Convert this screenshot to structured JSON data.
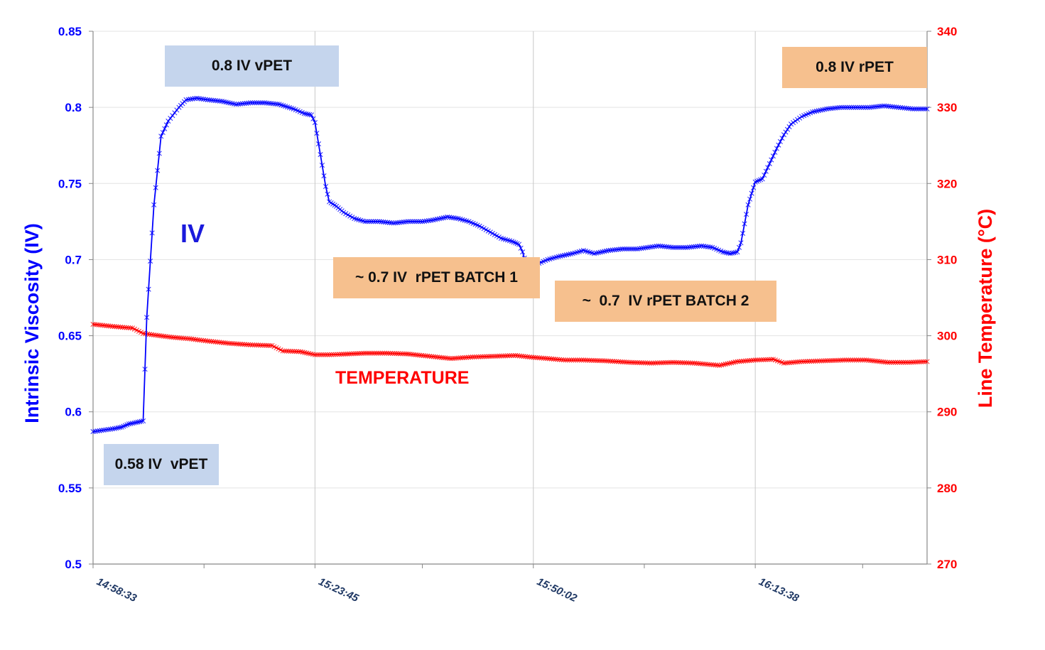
{
  "chart_data": {
    "type": "line",
    "title": "",
    "ylabel_left": "Intrinsic Viscosity (IV)",
    "ylabel_right": "Line Temperature (°C)",
    "xlabel": "",
    "ylim_left": [
      0.5,
      0.85
    ],
    "ylim_right": [
      270,
      340
    ],
    "yticks_left": [
      "0.85",
      "0.8",
      "0.75",
      "0.7",
      "0.65",
      "0.6",
      "0.55",
      "0.5"
    ],
    "yticks_right": [
      "340",
      "330",
      "320",
      "310",
      "300",
      "290",
      "280",
      "270"
    ],
    "x_tick_labels": [
      "14:58:33",
      "15:23:45",
      "15:50:02",
      "16:13:38"
    ],
    "grid": "vertical lines at labeled x ticks, horizontal gridlines",
    "series": [
      {
        "name": "IV",
        "axis": "left",
        "color": "#0000ff",
        "marker": "x",
        "points": [
          [
            0,
            0.587
          ],
          [
            3,
            0.588
          ],
          [
            6,
            0.589
          ],
          [
            8,
            0.59
          ],
          [
            10,
            0.592
          ],
          [
            12,
            0.593
          ],
          [
            14,
            0.594
          ],
          [
            15,
            0.662
          ],
          [
            17,
            0.736
          ],
          [
            19,
            0.781
          ],
          [
            21,
            0.791
          ],
          [
            24,
            0.8
          ],
          [
            26,
            0.805
          ],
          [
            29,
            0.806
          ],
          [
            32,
            0.805
          ],
          [
            36,
            0.804
          ],
          [
            40,
            0.802
          ],
          [
            44,
            0.803
          ],
          [
            48,
            0.803
          ],
          [
            52,
            0.802
          ],
          [
            56,
            0.799
          ],
          [
            59,
            0.796
          ],
          [
            61,
            0.795
          ],
          [
            62,
            0.79
          ],
          [
            64,
            0.762
          ],
          [
            65,
            0.748
          ],
          [
            66,
            0.738
          ],
          [
            68,
            0.735
          ],
          [
            70,
            0.731
          ],
          [
            73,
            0.727
          ],
          [
            76,
            0.725
          ],
          [
            80,
            0.725
          ],
          [
            84,
            0.724
          ],
          [
            88,
            0.725
          ],
          [
            92,
            0.725
          ],
          [
            95,
            0.726
          ],
          [
            99,
            0.728
          ],
          [
            102,
            0.727
          ],
          [
            105,
            0.725
          ],
          [
            108,
            0.722
          ],
          [
            111,
            0.718
          ],
          [
            114,
            0.714
          ],
          [
            117,
            0.712
          ],
          [
            119,
            0.71
          ],
          [
            120,
            0.705
          ],
          [
            121,
            0.697
          ],
          [
            124,
            0.697
          ],
          [
            127,
            0.7
          ],
          [
            130,
            0.702
          ],
          [
            134,
            0.704
          ],
          [
            137,
            0.706
          ],
          [
            140,
            0.704
          ],
          [
            144,
            0.706
          ],
          [
            148,
            0.707
          ],
          [
            152,
            0.707
          ],
          [
            155,
            0.708
          ],
          [
            158,
            0.709
          ],
          [
            162,
            0.708
          ],
          [
            166,
            0.708
          ],
          [
            170,
            0.709
          ],
          [
            173,
            0.708
          ],
          [
            176,
            0.705
          ],
          [
            178,
            0.704
          ],
          [
            180,
            0.705
          ],
          [
            181,
            0.711
          ],
          [
            183,
            0.736
          ],
          [
            185,
            0.751
          ],
          [
            187,
            0.753
          ],
          [
            189,
            0.763
          ],
          [
            191,
            0.773
          ],
          [
            193,
            0.782
          ],
          [
            195,
            0.789
          ],
          [
            198,
            0.794
          ],
          [
            201,
            0.797
          ],
          [
            205,
            0.799
          ],
          [
            209,
            0.8
          ],
          [
            213,
            0.8
          ],
          [
            217,
            0.8
          ],
          [
            221,
            0.801
          ],
          [
            225,
            0.8
          ],
          [
            229,
            0.799
          ],
          [
            233,
            0.799
          ]
        ]
      },
      {
        "name": "TEMPERATURE",
        "axis": "right",
        "color": "#ff0000",
        "marker": "x",
        "points": [
          [
            0,
            301.5
          ],
          [
            6,
            301.2
          ],
          [
            11,
            301.0
          ],
          [
            14,
            300.3
          ],
          [
            17,
            300.1
          ],
          [
            22,
            299.8
          ],
          [
            27,
            299.6
          ],
          [
            32,
            299.3
          ],
          [
            38,
            299.0
          ],
          [
            44,
            298.8
          ],
          [
            50,
            298.7
          ],
          [
            53,
            298.0
          ],
          [
            58,
            297.9
          ],
          [
            62,
            297.5
          ],
          [
            66,
            297.5
          ],
          [
            71,
            297.6
          ],
          [
            76,
            297.7
          ],
          [
            82,
            297.7
          ],
          [
            88,
            297.6
          ],
          [
            94,
            297.3
          ],
          [
            100,
            297.0
          ],
          [
            106,
            297.2
          ],
          [
            112,
            297.3
          ],
          [
            118,
            297.4
          ],
          [
            122,
            297.2
          ],
          [
            127,
            297.0
          ],
          [
            132,
            296.8
          ],
          [
            137,
            296.8
          ],
          [
            143,
            296.7
          ],
          [
            150,
            296.5
          ],
          [
            156,
            296.4
          ],
          [
            162,
            296.5
          ],
          [
            168,
            296.4
          ],
          [
            175,
            296.1
          ],
          [
            180,
            296.6
          ],
          [
            185,
            296.8
          ],
          [
            190,
            296.9
          ],
          [
            193,
            296.4
          ],
          [
            198,
            296.6
          ],
          [
            204,
            296.7
          ],
          [
            210,
            296.8
          ],
          [
            216,
            296.8
          ],
          [
            222,
            296.5
          ],
          [
            228,
            296.5
          ],
          [
            233,
            296.6
          ]
        ]
      }
    ],
    "x_range": [
      0,
      233
    ],
    "x_tick_positions": [
      0,
      62,
      123,
      185
    ],
    "x_minor_ticks": [
      31,
      92,
      154,
      215
    ],
    "annotations": [
      {
        "id": "ann-058-vpet",
        "text": "0.58 IV  vPET",
        "style": "blue"
      },
      {
        "id": "ann-08-vpet",
        "text": "0.8 IV vPET",
        "style": "blue"
      },
      {
        "id": "ann-07-batch1",
        "text": "~ 0.7 IV  rPET BATCH 1",
        "style": "orange"
      },
      {
        "id": "ann-07-batch2",
        "text": "~  0.7  IV rPET BATCH 2",
        "style": "orange"
      },
      {
        "id": "ann-08-rpet",
        "text": "0.8 IV rPET",
        "style": "orange"
      }
    ],
    "series_labels": {
      "iv": "IV",
      "temperature": "TEMPERATURE"
    }
  }
}
